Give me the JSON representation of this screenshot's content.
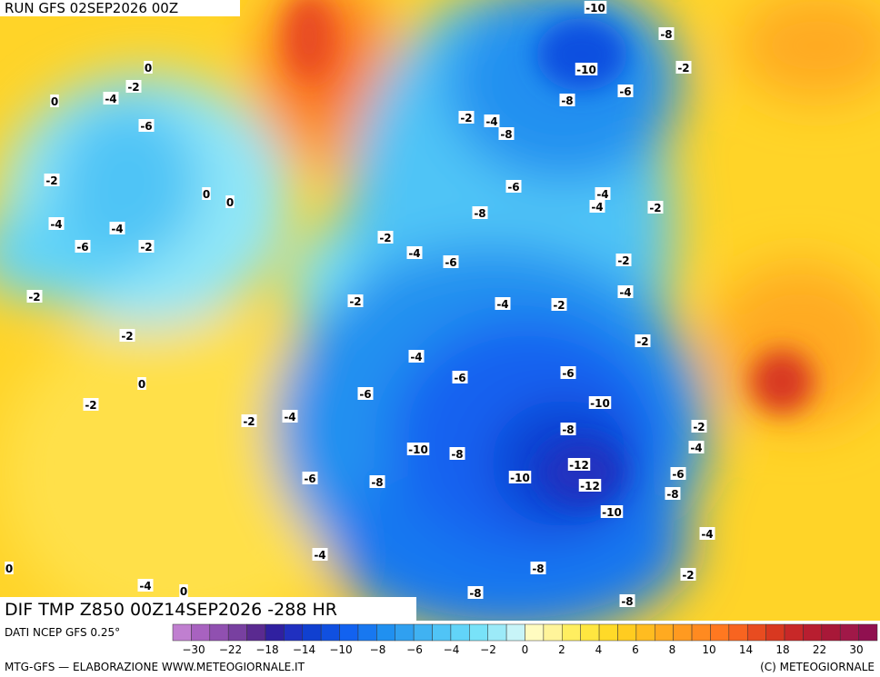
{
  "header": {
    "run": "RUN GFS 02SEP2026 00Z",
    "field": "DIF TMP Z850 00Z14SEP2026 -288 HR"
  },
  "map": {
    "contour_labels": [
      "-10",
      "-8",
      "-10",
      "-2",
      "-6",
      "-8",
      "0",
      "-2",
      "-4",
      "0",
      "-6",
      "-2",
      "-4",
      "-8",
      "-6",
      "-4",
      "-4",
      "-2",
      "-8",
      "-2",
      "0",
      "0",
      "-4",
      "-4",
      "-6",
      "-2",
      "-2",
      "-4",
      "-6",
      "-2",
      "-4",
      "-2",
      "-2",
      "-4",
      "-2",
      "-2",
      "-2",
      "-4",
      "-6",
      "-6",
      "0",
      "-2",
      "-6",
      "-10",
      "-2",
      "-4",
      "-8",
      "-2",
      "-4",
      "-10",
      "-8",
      "-12",
      "-6",
      "-6",
      "-8",
      "-10",
      "-12",
      "-8",
      "-10",
      "-4",
      "-4",
      "-8",
      "-2",
      "0",
      "-4",
      "0",
      "-8",
      "-8"
    ]
  },
  "colorbar": {
    "colors": [
      "#c07fd0",
      "#a862c0",
      "#9050b0",
      "#7840a0",
      "#5a2a90",
      "#3020a0",
      "#2030c0",
      "#1040d0",
      "#1050e0",
      "#1262f0",
      "#1878f0",
      "#2090f0",
      "#30a0f0",
      "#40b2f2",
      "#50c4f6",
      "#62d4f8",
      "#78e2f8",
      "#9ceaf8",
      "#c8f4f8",
      "#fffbc0",
      "#fff49a",
      "#ffee60",
      "#ffe640",
      "#ffda28",
      "#ffcc20",
      "#ffbc20",
      "#ffaa20",
      "#ff9a20",
      "#ff8a20",
      "#ff7820",
      "#f86420",
      "#e84c20",
      "#d83820",
      "#c82828",
      "#b81e30",
      "#a81838",
      "#a01848",
      "#901050"
    ],
    "labels": [
      "−30",
      "−22",
      "−18",
      "−14",
      "−10",
      "−8",
      "−6",
      "−4",
      "−2",
      "0",
      "2",
      "4",
      "6",
      "8",
      "10",
      "14",
      "18",
      "22",
      "30"
    ]
  },
  "footer": {
    "source": "DATI NCEP GFS 0.25°",
    "credit": "MTG-GFS — ELABORAZIONE WWW.METEOGIORNALE.IT",
    "copyright": "(C) METEOGIORNALE"
  }
}
